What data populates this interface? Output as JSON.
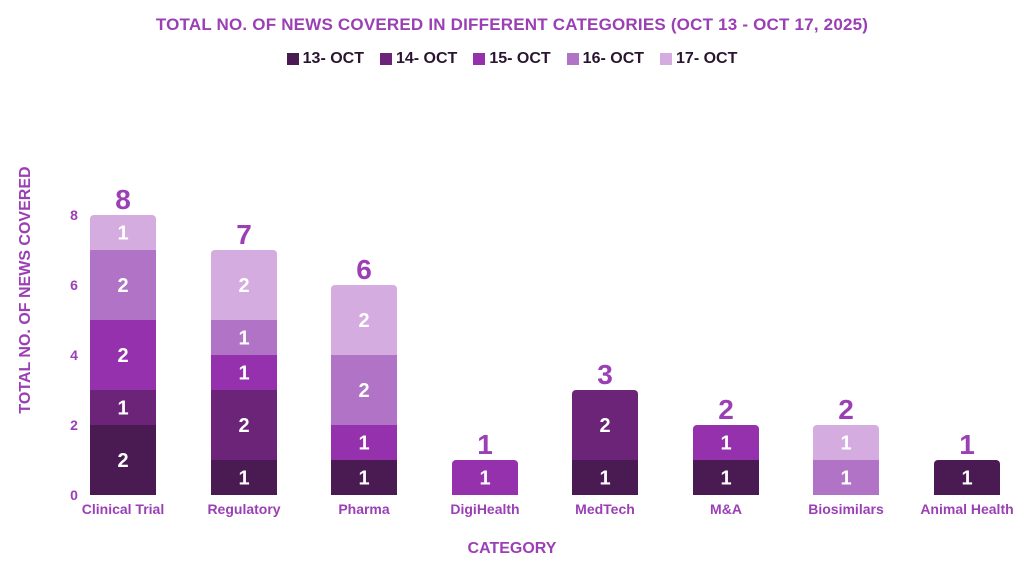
{
  "chart_data": {
    "type": "bar",
    "stacked": true,
    "title": "TOTAL NO. OF NEWS COVERED IN DIFFERENT CATEGORIES (OCT 13 - OCT 17, 2025)",
    "xlabel": "CATEGORY",
    "ylabel": "TOTAL  NO. OF NEWS COVERED",
    "ylim": [
      0,
      8
    ],
    "yticks": [
      "0",
      "2",
      "4",
      "6",
      "8"
    ],
    "legend_position": "top-center",
    "grid": false,
    "categories": [
      "Clinical Trial",
      "Regulatory",
      "Pharma",
      "DigiHealth",
      "MedTech",
      "M&A",
      "Biosimilars",
      "Animal Health"
    ],
    "totals": [
      "8",
      "7",
      "6",
      "1",
      "3",
      "2",
      "2",
      "1"
    ],
    "series": [
      {
        "name": "13- OCT",
        "color": "#4a1a52",
        "values": [
          2,
          1,
          1,
          0,
          1,
          1,
          0,
          1
        ]
      },
      {
        "name": "14- OCT",
        "color": "#6b2478",
        "values": [
          1,
          2,
          0,
          0,
          2,
          0,
          0,
          0
        ]
      },
      {
        "name": "15- OCT",
        "color": "#9531ac",
        "values": [
          2,
          1,
          1,
          1,
          0,
          1,
          0,
          0
        ]
      },
      {
        "name": "16- OCT",
        "color": "#b073c5",
        "values": [
          2,
          1,
          2,
          0,
          0,
          0,
          1,
          0
        ]
      },
      {
        "name": "17- OCT",
        "color": "#d4acdf",
        "values": [
          1,
          2,
          2,
          0,
          0,
          0,
          1,
          0
        ]
      }
    ]
  }
}
